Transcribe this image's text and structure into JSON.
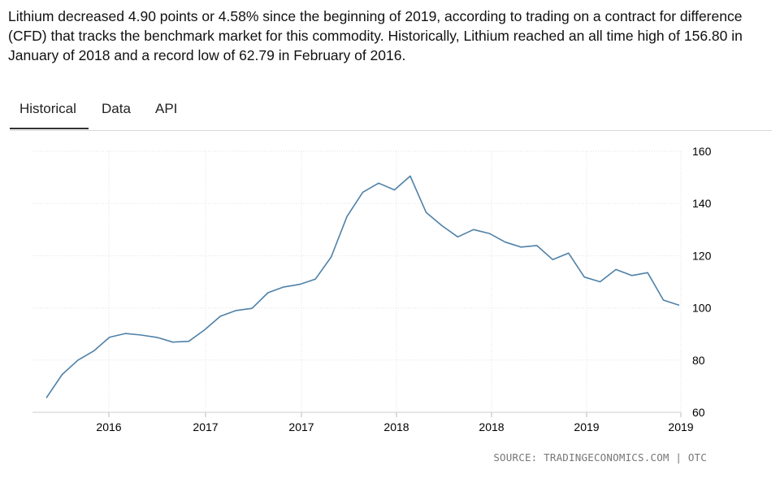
{
  "summary": "Lithium decreased 4.90 points or 4.58% since the beginning of 2019, according to trading on a contract for difference (CFD) that tracks the benchmark market for this commodity. Historically, Lithium reached an all time high of 156.80 in January of 2018 and a record low of 62.79 in February of 2016.",
  "tabs": {
    "historical": "Historical",
    "data": "Data",
    "api": "API"
  },
  "source": "SOURCE: TRADINGECONOMICS.COM | OTC",
  "colors": {
    "line": "#4f81a8",
    "grid": "#e2e2e2",
    "axis_text": "#000000"
  },
  "chart_data": {
    "type": "line",
    "title": "",
    "xlabel": "",
    "ylabel": "",
    "ylim": [
      60,
      160
    ],
    "y_ticks": [
      60,
      80,
      100,
      120,
      140,
      160
    ],
    "y_axis_side": "right",
    "grid": true,
    "x_tick_labels": [
      "2016",
      "2017",
      "2017",
      "2018",
      "2018",
      "2019",
      "2019"
    ],
    "series": [
      {
        "name": "",
        "values": [
          65.5,
          74.5,
          80.0,
          83.5,
          88.8,
          90.2,
          89.6,
          88.7,
          86.9,
          87.2,
          91.6,
          96.8,
          99.0,
          99.8,
          105.8,
          108.0,
          109.0,
          111.0,
          119.5,
          135.0,
          144.3,
          147.8,
          145.2,
          150.5,
          136.6,
          131.5,
          127.2,
          130.0,
          128.5,
          125.2,
          123.3,
          123.9,
          118.5,
          121.0,
          111.8,
          110.0,
          114.7,
          112.4,
          113.5,
          103.0,
          101.0
        ]
      }
    ]
  }
}
